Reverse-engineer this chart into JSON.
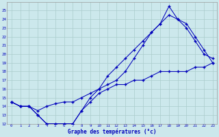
{
  "xlabel": "Graphe des températures (°c)",
  "bg_color": "#cce8ec",
  "grid_color": "#aacccc",
  "line_color": "#0000bb",
  "ylim": [
    12,
    26
  ],
  "xlim": [
    -0.5,
    23.5
  ],
  "yticks": [
    12,
    13,
    14,
    15,
    16,
    17,
    18,
    19,
    20,
    21,
    22,
    23,
    24,
    25
  ],
  "xticks": [
    0,
    1,
    2,
    3,
    4,
    5,
    6,
    7,
    8,
    9,
    10,
    11,
    12,
    13,
    14,
    15,
    16,
    17,
    18,
    19,
    20,
    21,
    22,
    23
  ],
  "line1_x": [
    0,
    1,
    2,
    3,
    4,
    5,
    6,
    7,
    8,
    9,
    10,
    11,
    12,
    13,
    14,
    15,
    16,
    17,
    18,
    19,
    20,
    21,
    22,
    23
  ],
  "line1_y": [
    14.5,
    14.0,
    14.0,
    13.5,
    14.0,
    14.3,
    14.5,
    14.5,
    15.0,
    15.5,
    16.0,
    16.5,
    17.0,
    18.0,
    19.5,
    21.0,
    22.5,
    23.5,
    24.5,
    24.0,
    23.5,
    22.0,
    20.5,
    19.0
  ],
  "line2_x": [
    0,
    1,
    2,
    3,
    4,
    5,
    6,
    7,
    8,
    9,
    10,
    11,
    12,
    13,
    14,
    15,
    16,
    17,
    18,
    19,
    20,
    21,
    22,
    23
  ],
  "line2_y": [
    14.5,
    14.0,
    14.0,
    13.0,
    12.0,
    12.0,
    12.0,
    12.0,
    13.5,
    15.0,
    16.0,
    17.5,
    18.5,
    19.5,
    20.5,
    21.5,
    22.5,
    23.5,
    25.5,
    24.0,
    23.0,
    21.5,
    20.0,
    19.5
  ],
  "line3_x": [
    0,
    1,
    2,
    3,
    4,
    5,
    6,
    7,
    8,
    9,
    10,
    11,
    12,
    13,
    14,
    15,
    16,
    17,
    18,
    19,
    20,
    21,
    22,
    23
  ],
  "line3_y": [
    14.5,
    14.0,
    14.0,
    13.0,
    12.0,
    12.0,
    12.0,
    12.0,
    13.5,
    14.5,
    15.5,
    16.0,
    16.5,
    16.5,
    17.0,
    17.0,
    17.5,
    18.0,
    18.0,
    18.0,
    18.0,
    18.5,
    18.5,
    19.0
  ]
}
